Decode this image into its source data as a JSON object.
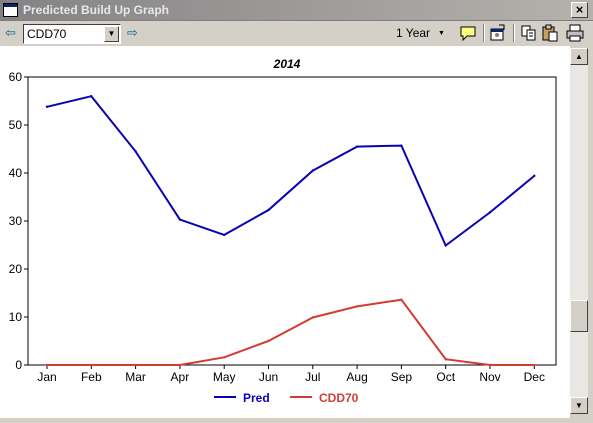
{
  "window": {
    "title": "Predicted Build Up Graph",
    "close_label": "×"
  },
  "toolbar": {
    "back_icon": "arrow-left-icon",
    "forward_icon": "arrow-right-icon",
    "selector_value": "CDD70",
    "period_value": "1 Year",
    "icons": [
      "comment-icon",
      "properties-icon",
      "copy-icon",
      "paste-icon",
      "print-icon"
    ]
  },
  "colors": {
    "pred": "#0a00b4",
    "cdd70": "#d23c32"
  },
  "chart_data": {
    "type": "line",
    "title": "2014",
    "categories": [
      "Jan",
      "Feb",
      "Mar",
      "Apr",
      "May",
      "Jun",
      "Jul",
      "Aug",
      "Sep",
      "Oct",
      "Nov",
      "Dec"
    ],
    "series": [
      {
        "name": "Pred",
        "values": [
          53.8,
          56.0,
          44.5,
          30.3,
          27.1,
          32.3,
          40.5,
          45.5,
          45.7,
          24.9,
          31.8,
          39.4
        ]
      },
      {
        "name": "CDD70",
        "values": [
          0,
          0,
          0,
          0,
          1.6,
          5.0,
          9.9,
          12.2,
          13.6,
          1.2,
          0,
          0
        ]
      }
    ],
    "ylim": [
      0,
      60
    ],
    "yticks": [
      0,
      10,
      20,
      30,
      40,
      50,
      60
    ],
    "grid": false,
    "legend": "bottom"
  }
}
